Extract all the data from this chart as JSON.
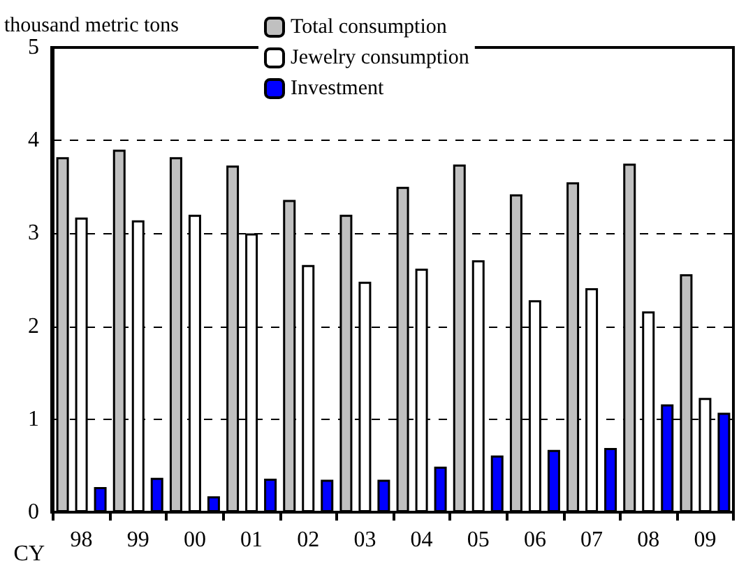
{
  "chart_data": {
    "type": "bar",
    "ylabel": "thousand metric tons",
    "xlabel": "CY",
    "categories": [
      "98",
      "99",
      "00",
      "01",
      "02",
      "03",
      "04",
      "05",
      "06",
      "07",
      "08",
      "09"
    ],
    "series": [
      {
        "name": "Total consumption",
        "color": "#c0c0c0",
        "values": [
          3.82,
          3.9,
          3.82,
          3.73,
          3.36,
          3.2,
          3.5,
          3.74,
          3.42,
          3.55,
          3.75,
          2.56
        ]
      },
      {
        "name": "Jewelry consumption",
        "color": "#ffffff",
        "values": [
          3.17,
          3.14,
          3.2,
          3.0,
          2.66,
          2.48,
          2.62,
          2.71,
          2.28,
          2.41,
          2.16,
          1.23
        ]
      },
      {
        "name": "Investment",
        "color": "#0000ff",
        "values": [
          0.27,
          0.37,
          0.17,
          0.36,
          0.35,
          0.35,
          0.49,
          0.61,
          0.67,
          0.69,
          1.16,
          1.07
        ]
      }
    ],
    "ylim": [
      0,
      5
    ],
    "yticks": [
      0,
      1,
      2,
      3,
      4,
      5
    ],
    "grid": "y",
    "legend": "top"
  }
}
